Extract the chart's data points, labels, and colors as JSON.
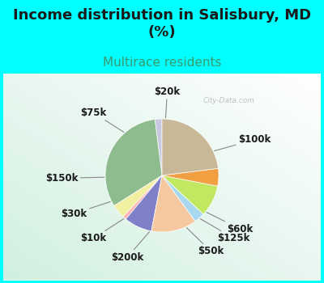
{
  "title": "Income distribution in Salisbury, MD\n(%)",
  "subtitle": "Multirace residents",
  "background_color": "#00FFFF",
  "chart_bg_color": "#e8f5ee",
  "watermark": "City-Data.com",
  "slices": [
    {
      "label": "$20k",
      "value": 2,
      "color": "#c8c8e0"
    },
    {
      "label": "$100k",
      "value": 32,
      "color": "#8fbc8f"
    },
    {
      "label": "$60k",
      "value": 4,
      "color": "#f0f0a0"
    },
    {
      "label": "$125k",
      "value": 1,
      "color": "#ffb0b0"
    },
    {
      "label": "$50k",
      "value": 8,
      "color": "#8080c8"
    },
    {
      "label": "$200k",
      "value": 13,
      "color": "#f5c8a0"
    },
    {
      "label": "$10k",
      "value": 3,
      "color": "#a8d8f0"
    },
    {
      "label": "$30k",
      "value": 9,
      "color": "#c0e860"
    },
    {
      "label": "$150k",
      "value": 5,
      "color": "#f0a040"
    },
    {
      "label": "$75k",
      "value": 23,
      "color": "#c8b898"
    }
  ],
  "startangle": 90,
  "label_fontsize": 8.5,
  "title_fontsize": 13,
  "subtitle_fontsize": 11,
  "subtitle_color": "#3a9a70",
  "title_color": "#1a1a1a",
  "label_color": "#1a1a1a"
}
